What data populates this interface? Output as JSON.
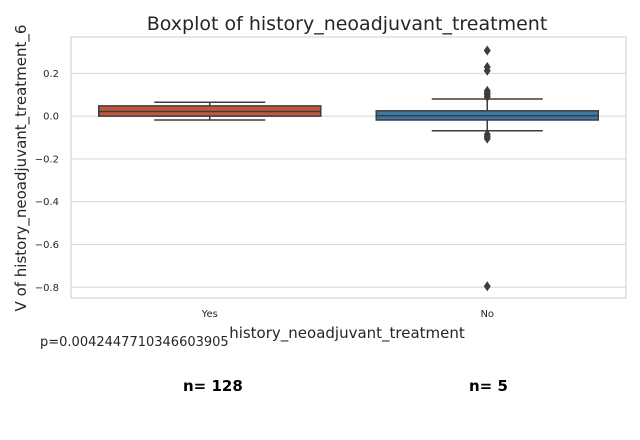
{
  "chart_data": {
    "type": "box",
    "title": "Boxplot of history_neoadjuvant_treatment",
    "xlabel": "history_neoadjuvant_treatment",
    "ylabel": "V of history_neoadjuvant_treatment_6",
    "ylim": [
      -0.85,
      0.37
    ],
    "yticks": [
      0.2,
      0.0,
      -0.2,
      -0.4,
      -0.6,
      -0.8
    ],
    "ytick_labels": [
      "0.2",
      "0.0",
      "−0.2",
      "−0.4",
      "−0.6",
      "−0.8"
    ],
    "grid": "horizontal",
    "categories": [
      "Yes",
      "No"
    ],
    "colors": [
      "#c0573e",
      "#3b79a6"
    ],
    "boxes": [
      {
        "category": "Yes",
        "whisker_low": -0.018,
        "q1": 0.0,
        "median": 0.022,
        "q3": 0.048,
        "whisker_high": 0.065,
        "outliers": []
      },
      {
        "category": "No",
        "whisker_low": -0.068,
        "q1": -0.018,
        "median": 0.002,
        "q3": 0.025,
        "whisker_high": 0.08,
        "outliers": [
          0.307,
          0.23,
          0.212,
          0.118,
          0.108,
          0.1,
          0.09,
          -0.085,
          -0.095,
          -0.105,
          -0.795
        ]
      }
    ]
  },
  "annotations": {
    "p_value": "p=0.0042447710346603905",
    "counts": [
      "n= 128",
      "n= 5"
    ]
  }
}
